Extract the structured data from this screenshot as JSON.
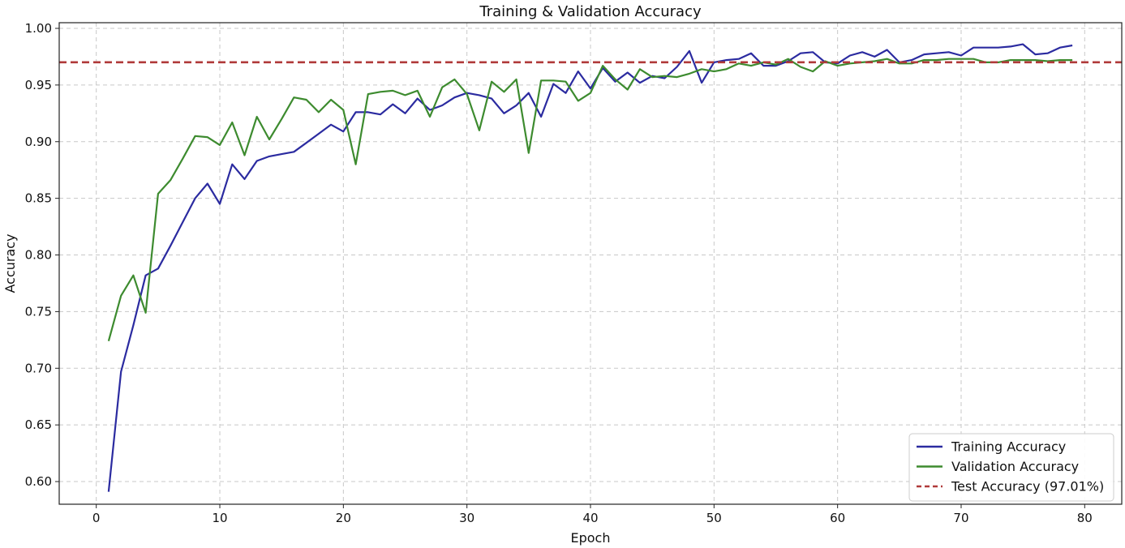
{
  "chart_data": {
    "type": "line",
    "title": "Training & Validation Accuracy",
    "xlabel": "Epoch",
    "ylabel": "Accuracy",
    "xlim": [
      -3,
      83
    ],
    "ylim": [
      0.58,
      1.005
    ],
    "xticks": [
      0,
      10,
      20,
      30,
      40,
      50,
      60,
      70,
      80
    ],
    "yticks": [
      0.6,
      0.65,
      0.7,
      0.75,
      0.8,
      0.85,
      0.9,
      0.95,
      1.0
    ],
    "xtick_labels": [
      "0",
      "10",
      "20",
      "30",
      "40",
      "50",
      "60",
      "70",
      "80"
    ],
    "ytick_labels": [
      "0.60",
      "0.65",
      "0.70",
      "0.75",
      "0.80",
      "0.85",
      "0.90",
      "0.95",
      "1.00"
    ],
    "grid": true,
    "legend_position": "bottom-right",
    "x": [
      1,
      2,
      3,
      4,
      5,
      6,
      7,
      8,
      9,
      10,
      11,
      12,
      13,
      14,
      15,
      16,
      17,
      18,
      19,
      20,
      21,
      22,
      23,
      24,
      25,
      26,
      27,
      28,
      29,
      30,
      31,
      32,
      33,
      34,
      35,
      36,
      37,
      38,
      39,
      40,
      41,
      42,
      43,
      44,
      45,
      46,
      47,
      48,
      49,
      50,
      51,
      52,
      53,
      54,
      55,
      56,
      57,
      58,
      59,
      60,
      61,
      62,
      63,
      64,
      65,
      66,
      67,
      68,
      69,
      70,
      71,
      72,
      73,
      74,
      75,
      76,
      77,
      78,
      79
    ],
    "series": [
      {
        "name": "Training Accuracy",
        "color": "#2b2ba0",
        "style": "solid",
        "values": [
          0.591,
          0.697,
          0.738,
          0.782,
          0.788,
          0.808,
          0.829,
          0.85,
          0.863,
          0.845,
          0.88,
          0.867,
          0.883,
          0.887,
          0.889,
          0.891,
          0.899,
          0.907,
          0.915,
          0.909,
          0.926,
          0.926,
          0.924,
          0.933,
          0.925,
          0.938,
          0.928,
          0.932,
          0.939,
          0.943,
          0.941,
          0.938,
          0.925,
          0.932,
          0.943,
          0.922,
          0.951,
          0.943,
          0.962,
          0.947,
          0.965,
          0.953,
          0.961,
          0.952,
          0.958,
          0.956,
          0.966,
          0.98,
          0.952,
          0.97,
          0.972,
          0.973,
          0.978,
          0.967,
          0.967,
          0.971,
          0.978,
          0.979,
          0.97,
          0.969,
          0.976,
          0.979,
          0.975,
          0.981,
          0.97,
          0.972,
          0.977,
          0.978,
          0.979,
          0.976,
          0.983,
          0.983,
          0.983,
          0.984,
          0.986,
          0.977,
          0.978,
          0.983,
          0.985
        ]
      },
      {
        "name": "Validation Accuracy",
        "color": "#3d8b2f",
        "style": "solid",
        "values": [
          0.724,
          0.764,
          0.782,
          0.749,
          0.854,
          0.866,
          0.885,
          0.905,
          0.904,
          0.897,
          0.917,
          0.888,
          0.922,
          0.902,
          0.92,
          0.939,
          0.937,
          0.926,
          0.937,
          0.928,
          0.88,
          0.942,
          0.944,
          0.945,
          0.941,
          0.945,
          0.922,
          0.948,
          0.955,
          0.942,
          0.91,
          0.953,
          0.944,
          0.955,
          0.89,
          0.954,
          0.954,
          0.953,
          0.936,
          0.943,
          0.967,
          0.955,
          0.946,
          0.964,
          0.957,
          0.958,
          0.957,
          0.96,
          0.964,
          0.962,
          0.964,
          0.969,
          0.967,
          0.97,
          0.968,
          0.973,
          0.966,
          0.962,
          0.971,
          0.967,
          0.969,
          0.97,
          0.971,
          0.973,
          0.969,
          0.969,
          0.972,
          0.972,
          0.973,
          0.973,
          0.973,
          0.97,
          0.97,
          0.972,
          0.972,
          0.972,
          0.971,
          0.972,
          0.972
        ]
      }
    ],
    "reference_line": {
      "name": "Test Accuracy (97.01%)",
      "value": 0.9701,
      "color": "#b03a3a",
      "style": "dashed"
    }
  }
}
